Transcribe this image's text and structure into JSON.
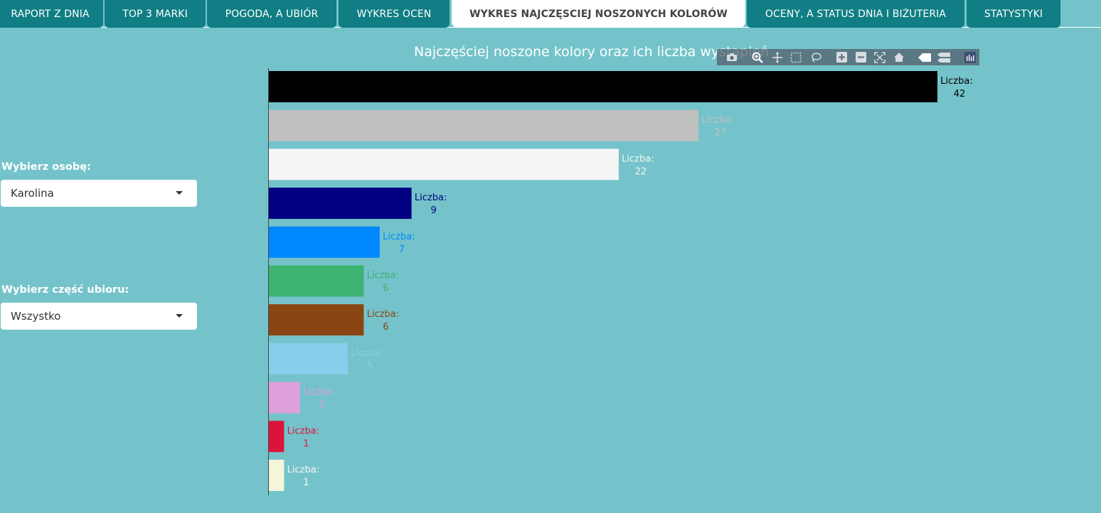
{
  "tabs": [
    {
      "label": "RAPORT Z DNIA"
    },
    {
      "label": "TOP 3 MARKI"
    },
    {
      "label": "POGODA, A UBIÓR"
    },
    {
      "label": "WYKRES OCEN"
    },
    {
      "label": "WYKRES NAJCZĘSCIEJ NOSZONYCH KOLORÓW",
      "active": true
    },
    {
      "label": "OCENY, A STATUS DNIA I BIŻUTERIA"
    },
    {
      "label": "STATYSTYKI"
    }
  ],
  "sidebar": {
    "person_label": "Wybierz osobę:",
    "person_value": "Karolina",
    "part_label": "Wybierz część ubioru:",
    "part_value": "Wszystko"
  },
  "colors": {
    "background": "#74c3ca",
    "tab_bg": "#107e84",
    "tab_active_bg": "#ffffff"
  },
  "modebar_icons": [
    "camera-icon",
    "zoom-icon",
    "pan-icon",
    "box-select-icon",
    "lasso-select-icon",
    "zoom-in-icon",
    "zoom-out-icon",
    "autoscale-icon",
    "reset-axes-icon",
    "spike-lines-icon",
    "compare-hover-icon",
    "plotly-logo-icon"
  ],
  "chart_data": {
    "type": "bar",
    "orientation": "horizontal",
    "title": "Najczęściej noszone kolory oraz ich liczba wystąpień",
    "label_prefix": "Liczba:",
    "xlim": [
      0,
      42
    ],
    "categories": [
      "black",
      "silver",
      "whitesmoke",
      "navy",
      "dodgerblue",
      "mediumseagreen",
      "saddlebrown",
      "skyblue",
      "plum",
      "crimson",
      "beige"
    ],
    "values": [
      42,
      27,
      22,
      9,
      7,
      6,
      6,
      5,
      2,
      1,
      1
    ],
    "bar_colors": [
      "#000000",
      "#c0c0c0",
      "#f5f5f5",
      "#000080",
      "#0088ff",
      "#3cb371",
      "#8b4513",
      "#87ceeb",
      "#dda0dd",
      "#dc143c",
      "#f5f5dc"
    ],
    "label_colors": [
      "#000000",
      "#c0c0c0",
      "#f5f5f5",
      "#000080",
      "#0088ff",
      "#3cb371",
      "#8b4513",
      "#87ceeb",
      "#dda0dd",
      "#dc143c",
      "#f5f5f5"
    ]
  }
}
